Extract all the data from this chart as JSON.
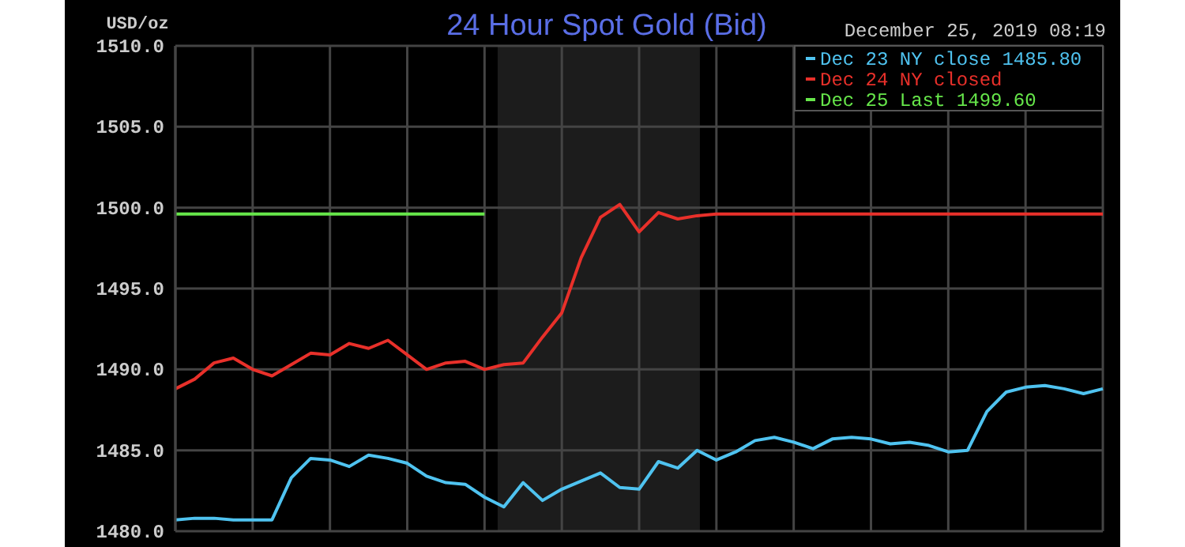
{
  "chart_data": {
    "type": "line",
    "title": "24 Hour Spot Gold (Bid)",
    "ylabel": "USD/oz",
    "annotations": [
      "December 25, 2019 08:19"
    ],
    "categories": [
      null,
      null,
      null,
      null,
      null,
      null,
      null,
      null,
      null,
      null,
      null,
      null,
      null,
      null,
      null,
      null,
      null,
      null,
      null,
      null,
      null,
      null,
      null,
      null,
      null,
      null,
      null,
      null,
      null,
      null,
      null,
      null,
      null,
      null,
      null,
      null,
      null,
      null,
      null,
      null,
      null,
      null,
      null,
      null,
      null,
      null,
      null,
      null,
      null
    ],
    "ylim": [
      1480,
      1510
    ],
    "yticks": [
      {
        "value": 1480,
        "label": "1480.0"
      },
      {
        "value": 1485,
        "label": "1485.0"
      },
      {
        "value": 1490,
        "label": "1490.0"
      },
      {
        "value": 1495,
        "label": "1495.0"
      },
      {
        "value": 1500,
        "label": "1500.0"
      },
      {
        "value": 1505,
        "label": "1505.0"
      },
      {
        "value": 1510,
        "label": "1510.0"
      }
    ],
    "grid": true,
    "legend": "top right",
    "marker": "none",
    "line_style": "solid",
    "series": [
      {
        "name": "Dec 23 NY close 1485.80",
        "color": "#4fc3f0",
        "values": [
          1480.7,
          1480.8,
          1480.8,
          1480.7,
          1480.7,
          1480.7,
          1483.3,
          1484.5,
          1484.4,
          1484.0,
          1484.7,
          1484.5,
          1484.2,
          1483.4,
          1483.0,
          1482.9,
          1482.1,
          1481.5,
          1483.0,
          1481.9,
          1482.6,
          1483.1,
          1483.6,
          1482.7,
          1482.6,
          1484.3,
          1483.9,
          1485.0,
          1484.4,
          1484.9,
          1485.6,
          1485.8,
          1485.5,
          1485.1,
          1485.7,
          1485.8,
          1485.7,
          1485.4,
          1485.5,
          1485.3,
          1484.9,
          1485.0,
          1487.4,
          1488.6,
          1488.9,
          1489.0,
          1488.8,
          1488.5,
          1488.8
        ]
      },
      {
        "name": "Dec 24 NY closed",
        "color": "#e8302a",
        "values": [
          1488.8,
          1489.4,
          1490.4,
          1490.7,
          1490.0,
          1489.6,
          1490.3,
          1491.0,
          1490.9,
          1491.6,
          1491.3,
          1491.8,
          1490.9,
          1490.0,
          1490.4,
          1490.5,
          1490.0,
          1490.3,
          1490.4,
          1492.0,
          1493.5,
          1496.9,
          1499.4,
          1500.2,
          1498.5,
          1499.7,
          1499.3,
          1499.5,
          1499.6,
          1499.6,
          1499.6,
          1499.6,
          1499.6,
          1499.6,
          1499.6,
          1499.6,
          1499.6,
          1499.6,
          1499.6,
          1499.6,
          1499.6,
          1499.6,
          1499.6,
          1499.6,
          1499.6,
          1499.6,
          1499.6,
          1499.6,
          1499.6
        ]
      },
      {
        "name": "Dec 25 Last 1499.60",
        "color": "#66e64a",
        "values": [
          1499.6,
          1499.6,
          1499.6,
          1499.6,
          1499.6,
          1499.6,
          1499.6,
          1499.6,
          1499.6,
          1499.6,
          1499.6,
          1499.6,
          1499.6,
          1499.6,
          1499.6,
          1499.6,
          1499.6,
          null,
          null,
          null,
          null,
          null,
          null,
          null,
          null,
          null,
          null,
          null,
          null,
          null,
          null,
          null,
          null,
          null,
          null,
          null,
          null,
          null,
          null,
          null,
          null,
          null,
          null,
          null,
          null,
          null,
          null,
          null,
          null
        ]
      }
    ]
  }
}
